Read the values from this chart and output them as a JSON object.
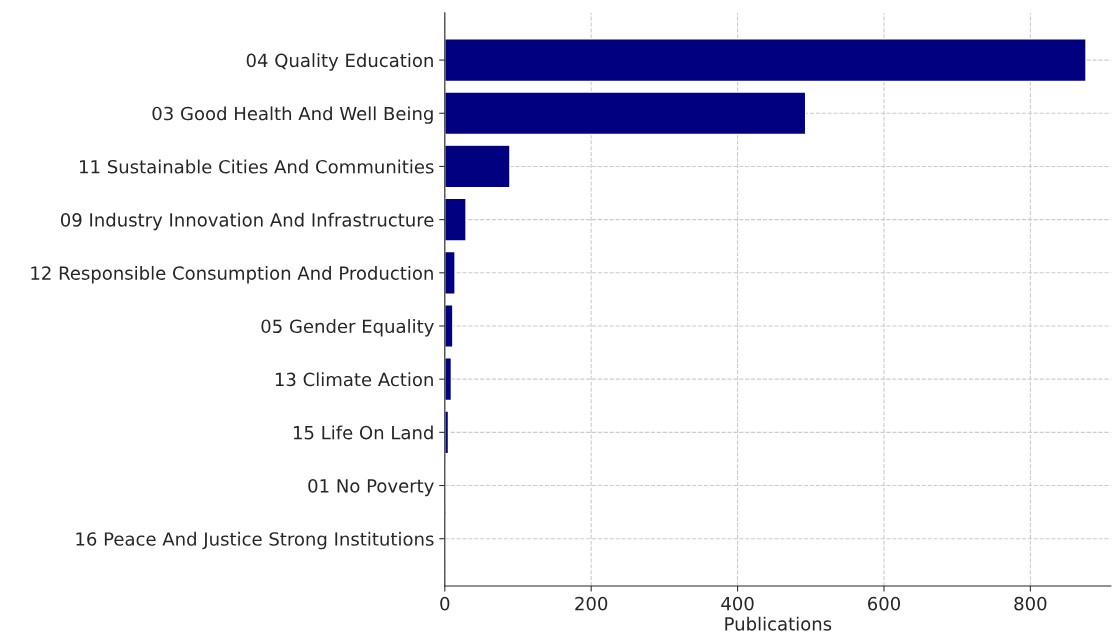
{
  "chart_data": {
    "type": "bar",
    "orientation": "horizontal",
    "xlabel": "Publications",
    "categories": [
      "04 Quality Education",
      "03 Good Health And Well Being",
      "11 Sustainable Cities And Communities",
      "09 Industry Innovation And Infrastructure",
      "12 Responsible Consumption And Production",
      "05 Gender Equality",
      "13 Climate Action",
      "15 Life On Land",
      "01 No Poverty",
      "16 Peace And Justice Strong Institutions"
    ],
    "values": [
      876,
      493,
      89,
      29,
      14,
      11,
      9,
      5,
      1,
      1
    ],
    "color": "#000080",
    "xlim": [
      0,
      910
    ],
    "xticks": [
      0,
      200,
      400,
      600,
      800
    ],
    "grid": true
  }
}
